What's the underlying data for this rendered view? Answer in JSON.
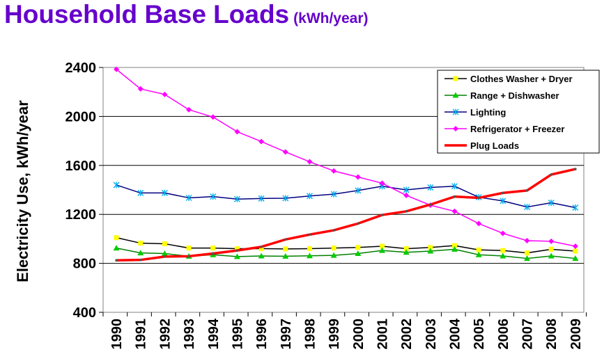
{
  "header": {
    "title": "Household Base Loads",
    "subtitle": "(kWh/year)"
  },
  "chart_data": {
    "type": "line",
    "title": "Household Base Loads",
    "subtitle": "(kWh/year)",
    "xlabel": "",
    "ylabel": "Electricity Use, kWh/year",
    "ylim": [
      400,
      2400
    ],
    "yticks": [
      400,
      800,
      1200,
      1600,
      2000,
      2400
    ],
    "grid": true,
    "legend_position": "top-right",
    "x": [
      "1990",
      "1991",
      "1992",
      "1993",
      "1994",
      "1995",
      "1996",
      "1997",
      "1998",
      "1999",
      "2000",
      "2001",
      "2002",
      "2003",
      "2004",
      "2005",
      "2006",
      "2007",
      "2008",
      "2009"
    ],
    "series": [
      {
        "name": "Clothes Washer + Dryer",
        "color": "#000000",
        "marker": "square",
        "marker_color": "#ffff00",
        "width": 1.5,
        "values": [
          1010,
          965,
          960,
          925,
          925,
          920,
          920,
          918,
          920,
          925,
          930,
          940,
          920,
          930,
          945,
          910,
          905,
          885,
          915,
          900
        ]
      },
      {
        "name": "Range + Dishwasher",
        "color": "#008000",
        "marker": "triangle",
        "marker_color": "#00cc00",
        "width": 1.5,
        "values": [
          925,
          885,
          880,
          858,
          870,
          855,
          860,
          858,
          862,
          865,
          880,
          905,
          890,
          900,
          915,
          870,
          860,
          840,
          860,
          840
        ]
      },
      {
        "name": "Lighting",
        "color": "#000080",
        "marker": "star",
        "marker_color": "#00b0f0",
        "width": 1.5,
        "values": [
          1440,
          1375,
          1375,
          1335,
          1345,
          1325,
          1330,
          1332,
          1350,
          1365,
          1395,
          1430,
          1400,
          1420,
          1430,
          1340,
          1310,
          1260,
          1295,
          1255
        ]
      },
      {
        "name": "Refrigerator + Freezer",
        "color": "#ff00ff",
        "marker": "diamond",
        "marker_color": "#ff00ff",
        "width": 1.5,
        "values": [
          2385,
          2225,
          2180,
          2055,
          1995,
          1875,
          1795,
          1710,
          1630,
          1555,
          1505,
          1455,
          1355,
          1275,
          1225,
          1125,
          1045,
          985,
          980,
          940
        ]
      },
      {
        "name": "Plug Loads",
        "color": "#ff0000",
        "marker": "none",
        "marker_color": "#ff0000",
        "width": 3.5,
        "values": [
          825,
          828,
          855,
          858,
          880,
          905,
          935,
          995,
          1035,
          1070,
          1125,
          1195,
          1225,
          1280,
          1345,
          1335,
          1375,
          1395,
          1525,
          1570
        ]
      }
    ]
  }
}
